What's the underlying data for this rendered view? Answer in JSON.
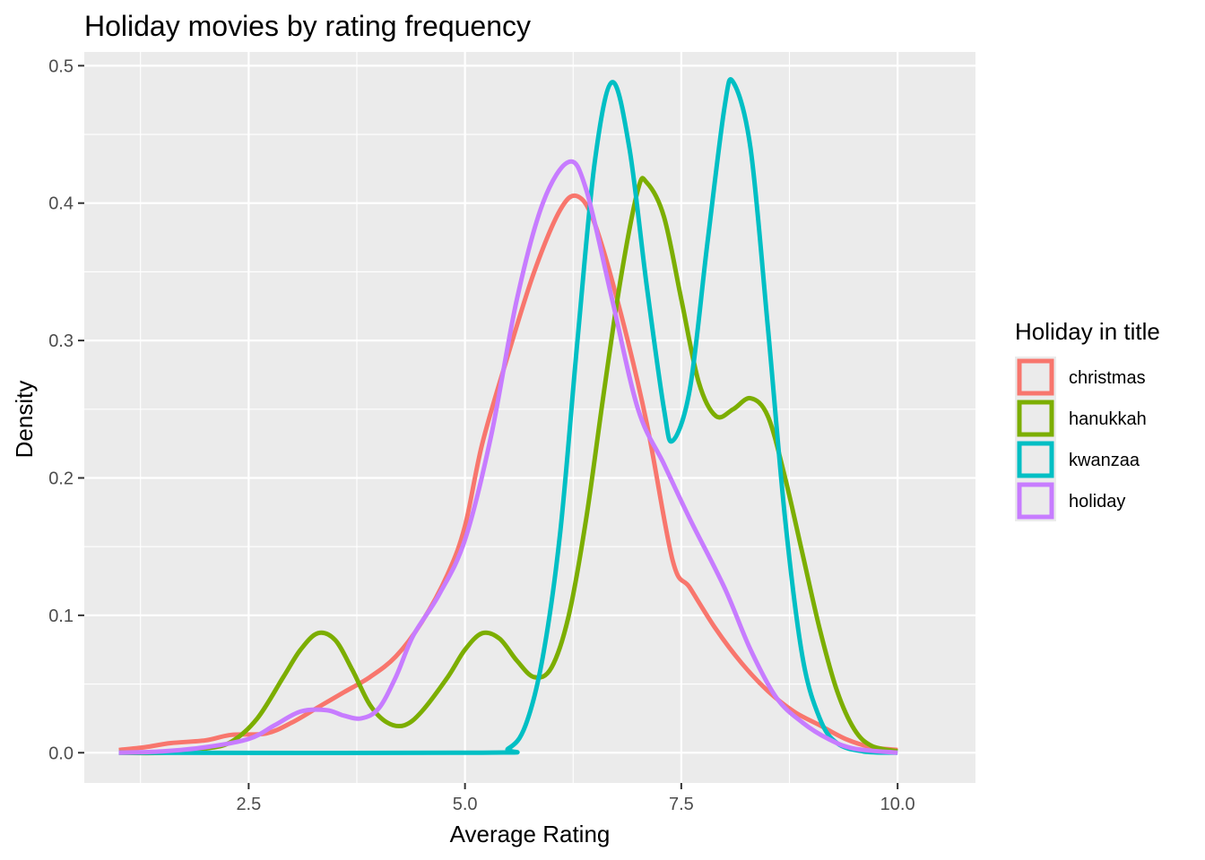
{
  "chart_data": {
    "type": "line",
    "title": "Holiday movies by rating frequency",
    "xlabel": "Average Rating",
    "ylabel": "Density",
    "xlim": [
      0.6,
      10.9
    ],
    "ylim": [
      -0.022,
      0.51
    ],
    "x_ticks": [
      2.5,
      5.0,
      7.5,
      10.0
    ],
    "x_tick_labels": [
      "2.5",
      "5.0",
      "7.5",
      "10.0"
    ],
    "y_ticks": [
      0.0,
      0.1,
      0.2,
      0.3,
      0.4,
      0.5
    ],
    "y_tick_labels": [
      "0.0",
      "0.1",
      "0.2",
      "0.3",
      "0.4",
      "0.5"
    ],
    "grid": true,
    "legend": {
      "title": "Holiday in title",
      "position": "right"
    },
    "series": [
      {
        "name": "christmas",
        "color": "#F8766D",
        "points": [
          [
            1.0,
            0.002
          ],
          [
            1.3,
            0.004
          ],
          [
            1.6,
            0.007
          ],
          [
            2.0,
            0.009
          ],
          [
            2.3,
            0.013
          ],
          [
            2.7,
            0.014
          ],
          [
            3.0,
            0.022
          ],
          [
            3.3,
            0.033
          ],
          [
            3.6,
            0.044
          ],
          [
            3.9,
            0.055
          ],
          [
            4.2,
            0.07
          ],
          [
            4.5,
            0.095
          ],
          [
            4.8,
            0.13
          ],
          [
            5.0,
            0.165
          ],
          [
            5.2,
            0.225
          ],
          [
            5.5,
            0.29
          ],
          [
            5.8,
            0.35
          ],
          [
            6.1,
            0.395
          ],
          [
            6.3,
            0.405
          ],
          [
            6.5,
            0.385
          ],
          [
            6.8,
            0.32
          ],
          [
            7.1,
            0.24
          ],
          [
            7.4,
            0.14
          ],
          [
            7.6,
            0.12
          ],
          [
            7.9,
            0.09
          ],
          [
            8.2,
            0.065
          ],
          [
            8.5,
            0.045
          ],
          [
            8.8,
            0.03
          ],
          [
            9.1,
            0.02
          ],
          [
            9.4,
            0.01
          ],
          [
            9.7,
            0.004
          ],
          [
            10.0,
            0.002
          ]
        ]
      },
      {
        "name": "hanukkah",
        "color": "#7CAE00",
        "points": [
          [
            1.0,
            0.0
          ],
          [
            1.5,
            0.0
          ],
          [
            2.0,
            0.003
          ],
          [
            2.3,
            0.008
          ],
          [
            2.6,
            0.025
          ],
          [
            2.9,
            0.055
          ],
          [
            3.1,
            0.075
          ],
          [
            3.3,
            0.087
          ],
          [
            3.5,
            0.082
          ],
          [
            3.7,
            0.06
          ],
          [
            3.9,
            0.035
          ],
          [
            4.1,
            0.022
          ],
          [
            4.3,
            0.02
          ],
          [
            4.5,
            0.03
          ],
          [
            4.8,
            0.055
          ],
          [
            5.0,
            0.075
          ],
          [
            5.2,
            0.087
          ],
          [
            5.4,
            0.083
          ],
          [
            5.6,
            0.067
          ],
          [
            5.8,
            0.055
          ],
          [
            6.0,
            0.062
          ],
          [
            6.2,
            0.1
          ],
          [
            6.4,
            0.17
          ],
          [
            6.6,
            0.26
          ],
          [
            6.8,
            0.345
          ],
          [
            7.0,
            0.41
          ],
          [
            7.1,
            0.415
          ],
          [
            7.3,
            0.39
          ],
          [
            7.5,
            0.33
          ],
          [
            7.7,
            0.27
          ],
          [
            7.9,
            0.245
          ],
          [
            8.1,
            0.25
          ],
          [
            8.3,
            0.258
          ],
          [
            8.5,
            0.245
          ],
          [
            8.7,
            0.2
          ],
          [
            8.9,
            0.145
          ],
          [
            9.1,
            0.09
          ],
          [
            9.3,
            0.045
          ],
          [
            9.5,
            0.017
          ],
          [
            9.7,
            0.005
          ],
          [
            10.0,
            0.001
          ]
        ]
      },
      {
        "name": "kwanzaa",
        "color": "#00BFC4",
        "points": [
          [
            1.0,
            0.0
          ],
          [
            5.2,
            0.0
          ],
          [
            5.5,
            0.003
          ],
          [
            5.7,
            0.02
          ],
          [
            5.9,
            0.07
          ],
          [
            6.1,
            0.16
          ],
          [
            6.3,
            0.3
          ],
          [
            6.5,
            0.43
          ],
          [
            6.7,
            0.488
          ],
          [
            6.9,
            0.44
          ],
          [
            7.1,
            0.34
          ],
          [
            7.3,
            0.25
          ],
          [
            7.4,
            0.227
          ],
          [
            7.6,
            0.265
          ],
          [
            7.8,
            0.37
          ],
          [
            8.0,
            0.47
          ],
          [
            8.1,
            0.488
          ],
          [
            8.3,
            0.44
          ],
          [
            8.5,
            0.31
          ],
          [
            8.7,
            0.17
          ],
          [
            8.9,
            0.07
          ],
          [
            9.1,
            0.025
          ],
          [
            9.3,
            0.007
          ],
          [
            9.6,
            0.001
          ],
          [
            10.0,
            0.0
          ]
        ]
      },
      {
        "name": "holiday",
        "color": "#C77CFF",
        "points": [
          [
            1.0,
            0.0
          ],
          [
            1.5,
            0.001
          ],
          [
            2.0,
            0.004
          ],
          [
            2.5,
            0.01
          ],
          [
            2.8,
            0.02
          ],
          [
            3.1,
            0.03
          ],
          [
            3.4,
            0.031
          ],
          [
            3.6,
            0.027
          ],
          [
            3.8,
            0.025
          ],
          [
            4.0,
            0.032
          ],
          [
            4.2,
            0.055
          ],
          [
            4.4,
            0.085
          ],
          [
            4.7,
            0.115
          ],
          [
            5.0,
            0.155
          ],
          [
            5.3,
            0.23
          ],
          [
            5.6,
            0.33
          ],
          [
            5.9,
            0.4
          ],
          [
            6.2,
            0.43
          ],
          [
            6.4,
            0.41
          ],
          [
            6.7,
            0.33
          ],
          [
            7.0,
            0.25
          ],
          [
            7.3,
            0.21
          ],
          [
            7.6,
            0.17
          ],
          [
            8.0,
            0.12
          ],
          [
            8.3,
            0.075
          ],
          [
            8.6,
            0.04
          ],
          [
            8.9,
            0.022
          ],
          [
            9.2,
            0.01
          ],
          [
            9.5,
            0.003
          ],
          [
            10.0,
            0.0
          ]
        ]
      }
    ]
  }
}
